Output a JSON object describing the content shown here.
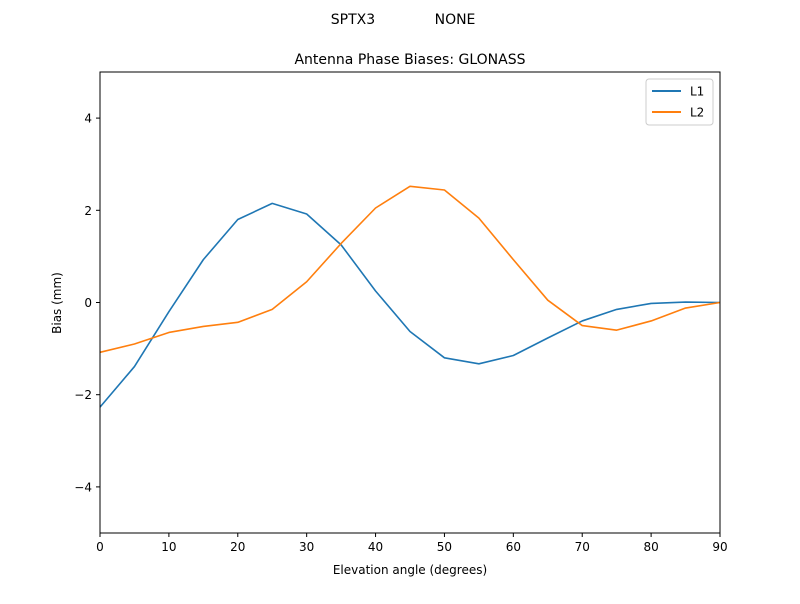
{
  "suptitle_left": "SPTX3",
  "suptitle_right": "NONE",
  "chart_data": {
    "type": "line",
    "title": "Antenna Phase Biases: GLONASS",
    "xlabel": "Elevation angle (degrees)",
    "ylabel": "Bias (mm)",
    "xlim": [
      0,
      90
    ],
    "ylim": [
      -5,
      5
    ],
    "xticks": [
      0,
      10,
      20,
      30,
      40,
      50,
      60,
      70,
      80,
      90
    ],
    "yticks": [
      -4,
      -2,
      0,
      2,
      4
    ],
    "ytick_labels": [
      "−4",
      "−2",
      "0",
      "2",
      "4"
    ],
    "grid": false,
    "legend_position": "upper right",
    "x": [
      0,
      5,
      10,
      15,
      20,
      25,
      30,
      35,
      40,
      45,
      50,
      55,
      60,
      65,
      70,
      75,
      80,
      85,
      90
    ],
    "series": [
      {
        "name": "L1",
        "color": "#1f77b4",
        "values": [
          -2.27,
          -1.39,
          -0.2,
          0.93,
          1.8,
          2.15,
          1.92,
          1.25,
          0.25,
          -0.63,
          -1.2,
          -1.33,
          -1.15,
          -0.77,
          -0.4,
          -0.15,
          -0.02,
          0.01,
          0.0
        ]
      },
      {
        "name": "L2",
        "color": "#ff7f0e",
        "values": [
          -1.08,
          -0.9,
          -0.65,
          -0.52,
          -0.43,
          -0.15,
          0.45,
          1.28,
          2.05,
          2.52,
          2.44,
          1.83,
          0.93,
          0.05,
          -0.5,
          -0.6,
          -0.4,
          -0.12,
          0.0
        ]
      }
    ]
  }
}
